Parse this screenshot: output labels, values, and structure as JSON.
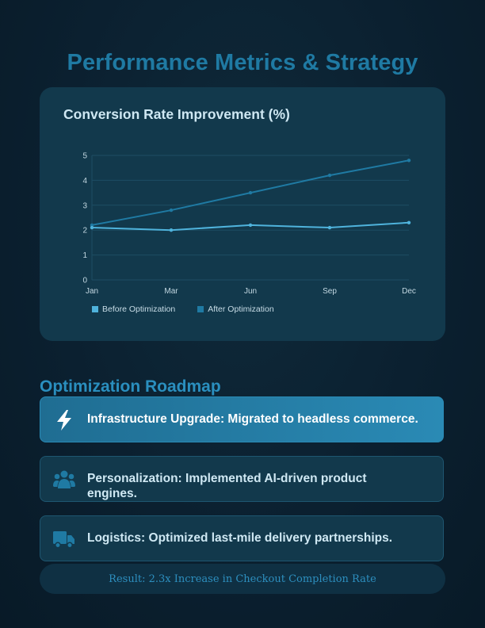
{
  "page": {
    "title": "Performance Metrics & Strategy"
  },
  "colors": {
    "before_series": "#4fb3dc",
    "after_series": "#1f7aa3",
    "title_accent": "#1f7aa3",
    "card_bg": "#12394c"
  },
  "chart": {
    "title": "Conversion Rate Improvement (%)",
    "legend": {
      "before": "Before Optimization",
      "after": "After Optimization"
    },
    "y_ticks": [
      "0",
      "1",
      "2",
      "3",
      "4",
      "5"
    ],
    "x_ticks": [
      "Jan",
      "Mar",
      "Jun",
      "Sep",
      "Dec"
    ]
  },
  "chart_data": {
    "type": "line",
    "title": "Conversion Rate Improvement (%)",
    "xlabel": "",
    "ylabel": "",
    "categories": [
      "Jan",
      "Mar",
      "Jun",
      "Sep",
      "Dec"
    ],
    "series": [
      {
        "name": "Before Optimization",
        "values": [
          2.1,
          2.0,
          2.2,
          2.1,
          2.3
        ],
        "color": "#4fb3dc"
      },
      {
        "name": "After Optimization",
        "values": [
          2.2,
          2.8,
          3.5,
          4.2,
          4.8
        ],
        "color": "#1f7aa3"
      }
    ],
    "ylim": [
      0,
      5
    ],
    "y_ticks": [
      0,
      1,
      2,
      3,
      4,
      5
    ],
    "grid": true,
    "legend_position": "bottom-left"
  },
  "roadmap": {
    "title": "Optimization Roadmap",
    "items": [
      {
        "icon": "bolt-icon",
        "text": "Infrastructure Upgrade: Migrated to headless commerce.",
        "active": true
      },
      {
        "icon": "users-icon",
        "text": "Personalization: Implemented AI-driven product engines.",
        "active": false
      },
      {
        "icon": "truck-icon",
        "text": "Logistics: Optimized last-mile delivery partnerships.",
        "active": false
      }
    ]
  },
  "result": {
    "text": "Result: 2.3x Increase in Checkout Completion Rate"
  }
}
